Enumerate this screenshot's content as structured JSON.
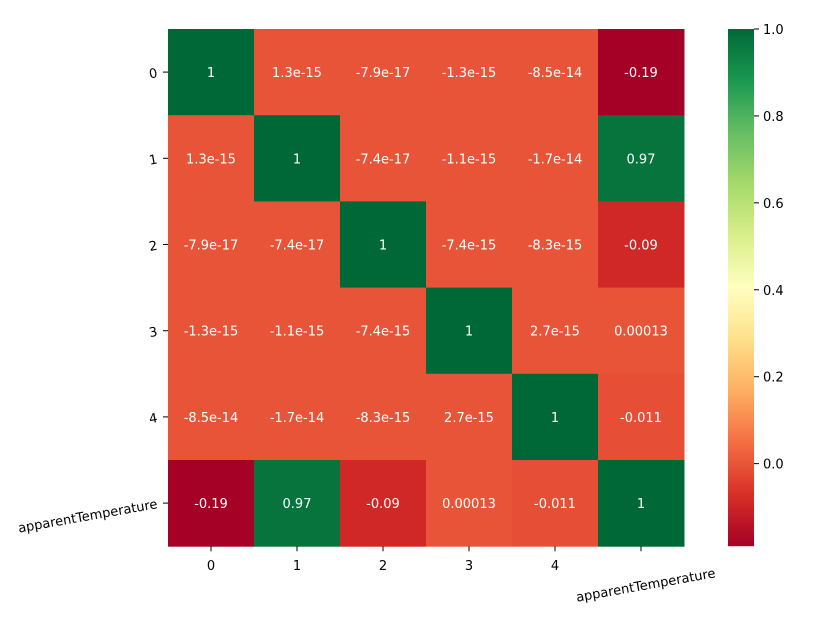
{
  "chart_data": {
    "type": "heatmap",
    "title": "",
    "x_categories": [
      "0",
      "1",
      "2",
      "3",
      "4",
      "apparentTemperature"
    ],
    "y_categories": [
      "0",
      "1",
      "2",
      "3",
      "4",
      "apparentTemperature"
    ],
    "values": [
      [
        1,
        1.3e-15,
        -7.9e-17,
        -1.3e-15,
        -8.5e-14,
        -0.19
      ],
      [
        1.3e-15,
        1,
        -7.4e-17,
        -1.1e-15,
        -1.7e-14,
        0.97
      ],
      [
        -7.9e-17,
        -7.4e-17,
        1,
        -7.4e-15,
        -8.3e-15,
        -0.09
      ],
      [
        -1.3e-15,
        -1.1e-15,
        -7.4e-15,
        1,
        2.7e-15,
        0.00013
      ],
      [
        -8.5e-14,
        -1.7e-14,
        -8.3e-15,
        2.7e-15,
        1,
        -0.011
      ],
      [
        -0.19,
        0.97,
        -0.09,
        0.00013,
        -0.011,
        1
      ]
    ],
    "annotations": [
      [
        "1",
        "1.3e-15",
        "-7.9e-17",
        "-1.3e-15",
        "-8.5e-14",
        "-0.19"
      ],
      [
        "1.3e-15",
        "1",
        "-7.4e-17",
        "-1.1e-15",
        "-1.7e-14",
        "0.97"
      ],
      [
        "-7.9e-17",
        "-7.4e-17",
        "1",
        "-7.4e-15",
        "-8.3e-15",
        "-0.09"
      ],
      [
        "-1.3e-15",
        "-1.1e-15",
        "-7.4e-15",
        "1",
        "2.7e-15",
        "0.00013"
      ],
      [
        "-8.5e-14",
        "-1.7e-14",
        "-8.3e-15",
        "2.7e-15",
        "1",
        "-0.011"
      ],
      [
        "-0.19",
        "0.97",
        "-0.09",
        "0.00013",
        "-0.011",
        "1"
      ]
    ],
    "colormap": "RdYlGn",
    "vmin": -0.19,
    "vmax": 1.0,
    "colorbar_ticks": [
      1.0,
      0.8,
      0.6,
      0.4,
      0.2,
      0.0
    ],
    "colorbar_tick_labels": [
      "1.0",
      "0.8",
      "0.6",
      "0.4",
      "0.2",
      "0.0"
    ],
    "colors": {
      "annotation_text": "#ffffff",
      "axis_text": "#000000",
      "background": "#ffffff"
    }
  }
}
